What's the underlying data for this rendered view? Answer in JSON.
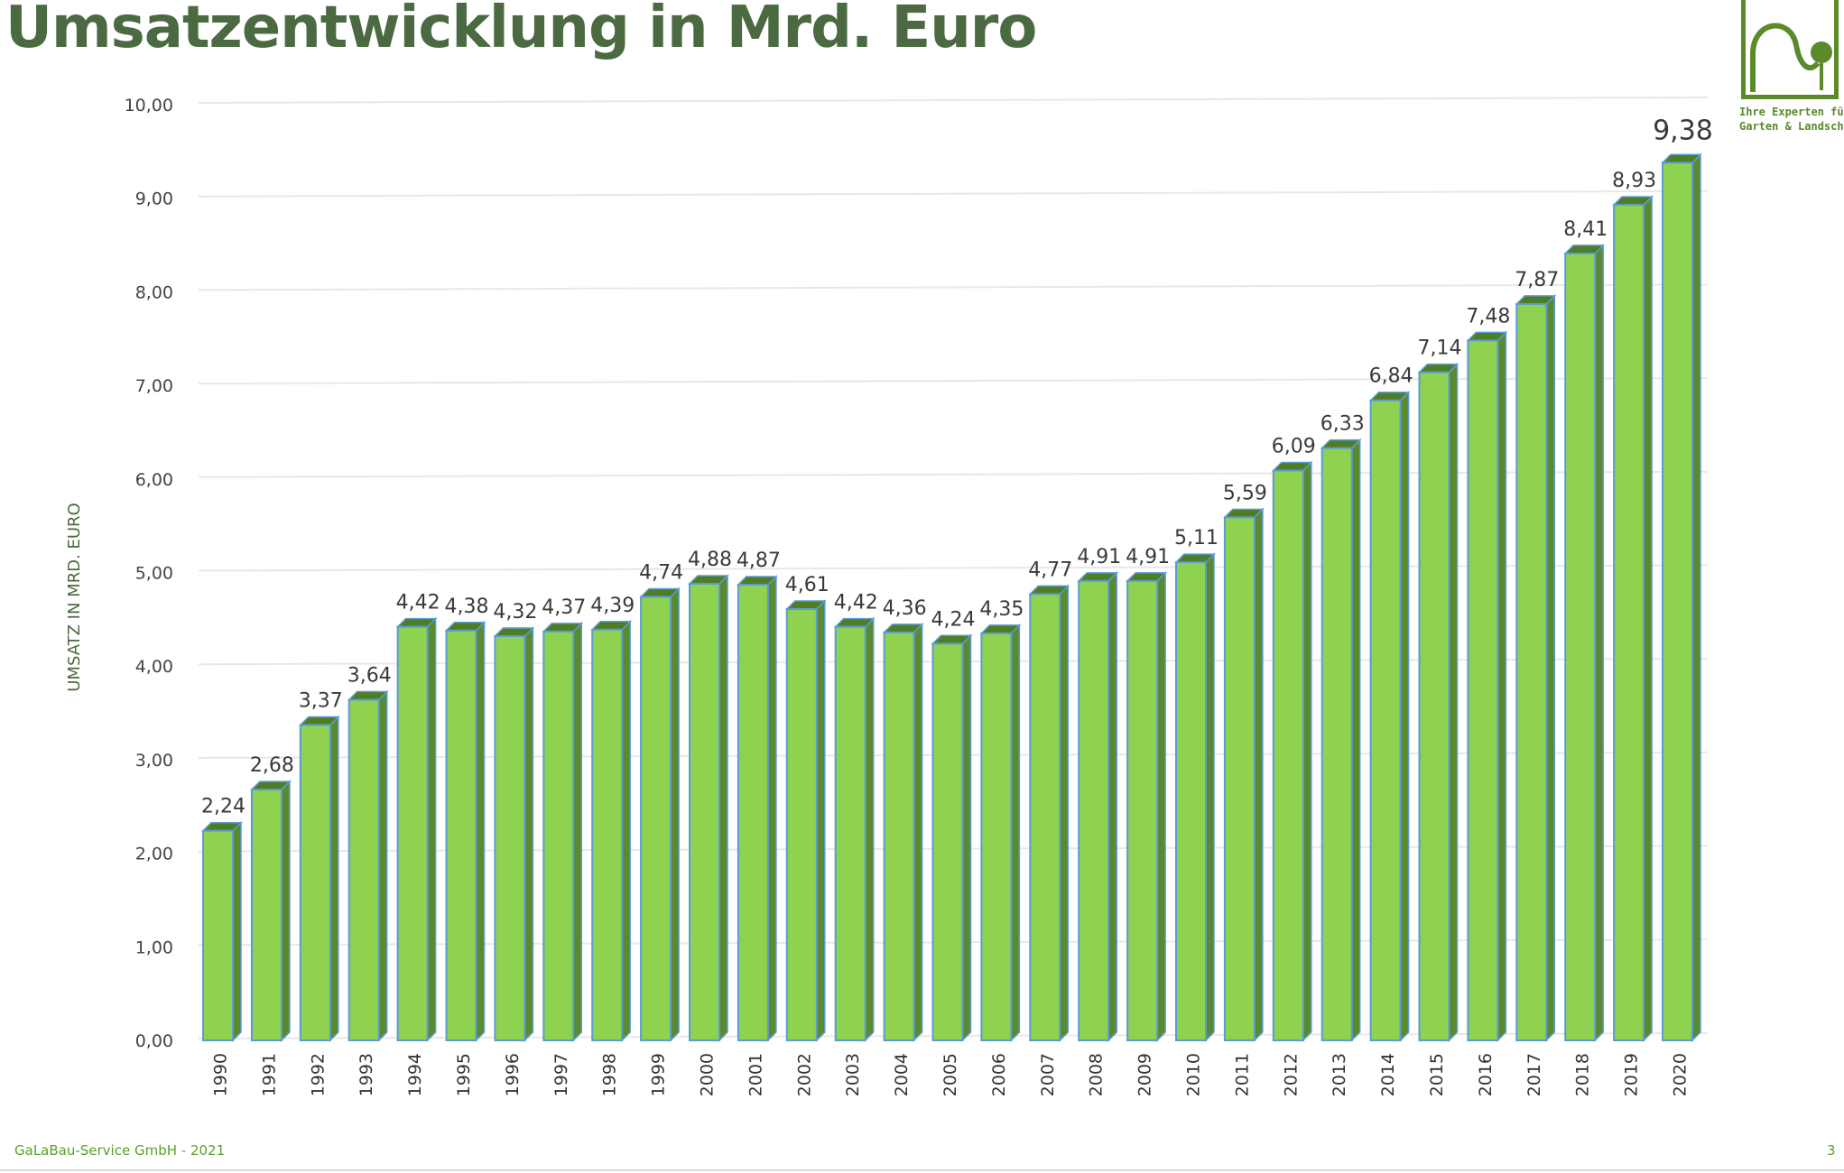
{
  "page": {
    "title": "Umsatzentwicklung in Mrd. Euro",
    "footer": "GaLaBau-Service GmbH  -  2021",
    "page_number": "3",
    "logo": {
      "tagline_line1": "Ihre Experten für",
      "tagline_line2": "Garten & Landschaft"
    }
  },
  "colors": {
    "title": "#4b6a41",
    "bar_front": "#8ed24f",
    "bar_side": "#5b8a2e",
    "bar_top": "#4f7d24",
    "bar_edge": "#5b9bd5",
    "label": "#3a3a3a",
    "grid": "#e8e8e8",
    "footer": "#5aa02c"
  },
  "chart_data": {
    "type": "bar",
    "title": "",
    "xlabel": "",
    "ylabel": "UMSATZ IN MRD. EURO",
    "ylim": [
      0,
      10
    ],
    "y_ticks": [
      "0,00",
      "1,00",
      "2,00",
      "3,00",
      "4,00",
      "5,00",
      "6,00",
      "7,00",
      "8,00",
      "9,00",
      "10,00"
    ],
    "y_tick_values": [
      0,
      1,
      2,
      3,
      4,
      5,
      6,
      7,
      8,
      9,
      10
    ],
    "grid": true,
    "legend": "none",
    "categories": [
      "1990",
      "1991",
      "1992",
      "1993",
      "1994",
      "1995",
      "1996",
      "1997",
      "1998",
      "1999",
      "2000",
      "2001",
      "2002",
      "2003",
      "2004",
      "2005",
      "2006",
      "2007",
      "2008",
      "2009",
      "2010",
      "2011",
      "2012",
      "2013",
      "2014",
      "2015",
      "2016",
      "2017",
      "2018",
      "2019",
      "2020"
    ],
    "values": [
      2.24,
      2.68,
      3.37,
      3.64,
      4.42,
      4.38,
      4.32,
      4.37,
      4.39,
      4.74,
      4.88,
      4.87,
      4.61,
      4.42,
      4.36,
      4.24,
      4.35,
      4.77,
      4.91,
      4.91,
      5.11,
      5.59,
      6.09,
      6.33,
      6.84,
      7.14,
      7.48,
      7.87,
      8.41,
      8.93,
      9.38
    ],
    "value_labels": [
      "2,24",
      "2,68",
      "3,37",
      "3,64",
      "4,42",
      "4,38",
      "4,32",
      "4,37",
      "4,39",
      "4,74",
      "4,88",
      "4,87",
      "4,61",
      "4,42",
      "4,36",
      "4,24",
      "4,35",
      "4,77",
      "4,91",
      "4,91",
      "5,11",
      "5,59",
      "6,09",
      "6,33",
      "6,84",
      "7,14",
      "7,48",
      "7,87",
      "8,41",
      "8,93",
      "9,38"
    ]
  }
}
